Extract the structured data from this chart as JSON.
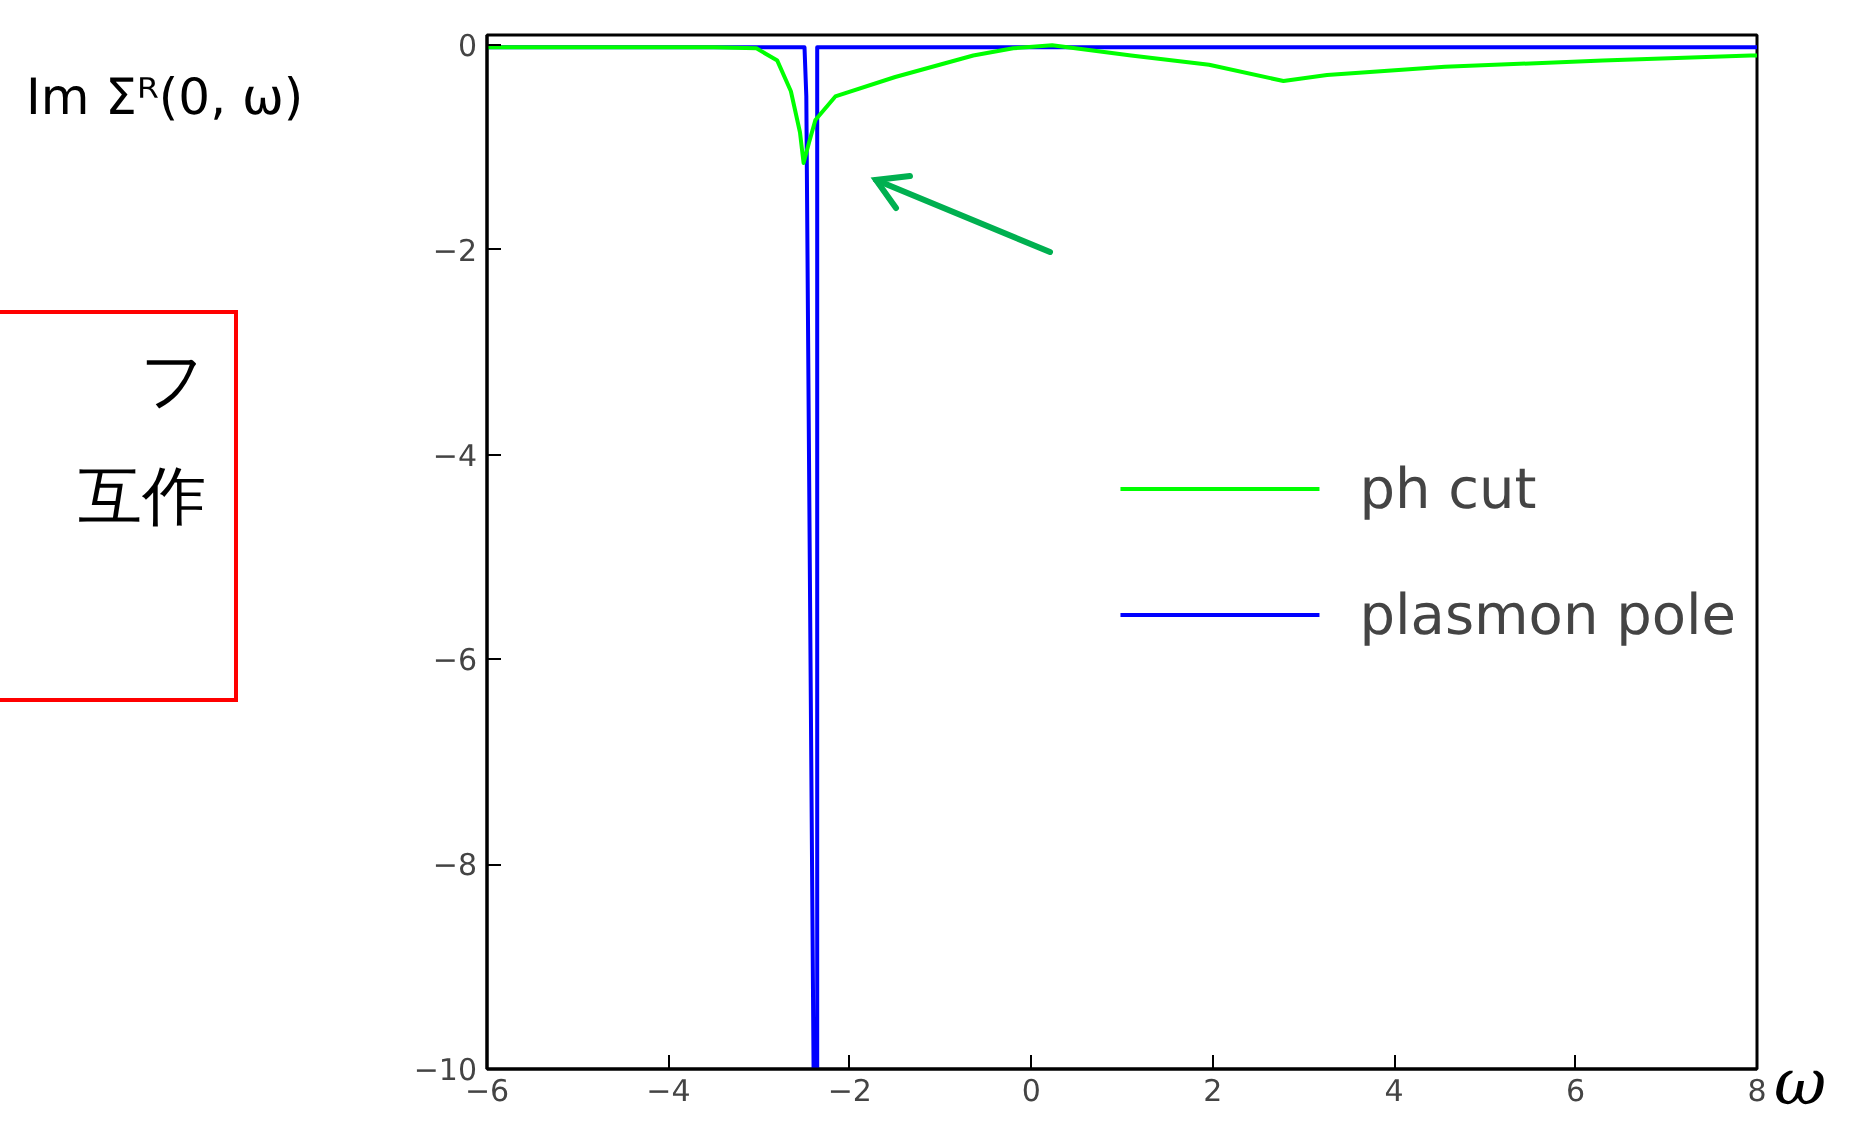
{
  "chart_data": {
    "type": "line",
    "xlabel": "ω",
    "ylabel": "Im Σᴿ(0, ω)",
    "xlim": [
      -6,
      8
    ],
    "ylim": [
      -10,
      0.1
    ],
    "xticks": [
      -6,
      -4,
      -2,
      0,
      2,
      4,
      6,
      8
    ],
    "yticks": [
      -10,
      -8,
      -6,
      -4,
      -2,
      0
    ],
    "grid": false,
    "legend": "right",
    "line_style": "solid",
    "marker": "none",
    "annotations": [
      "フ",
      "互作"
    ],
    "series": [
      {
        "name": "ph cut",
        "color": "#00ff00",
        "x": [
          -6,
          -3.5,
          -3.03,
          -2.8,
          -2.65,
          -2.55,
          -2.51,
          -2.45,
          -2.38,
          -2.16,
          -1.5,
          -0.64,
          -0.2,
          0.23,
          1.1,
          1.96,
          2.78,
          3.26,
          4.56,
          6.3,
          7.93,
          8
        ],
        "values": [
          -0.02,
          -0.02,
          -0.03,
          -0.15,
          -0.45,
          -0.85,
          -1.15,
          -0.95,
          -0.73,
          -0.5,
          -0.31,
          -0.1,
          -0.03,
          0,
          -0.1,
          -0.19,
          -0.35,
          -0.29,
          -0.21,
          -0.15,
          -0.1,
          -0.1
        ]
      },
      {
        "name": "plasmon pole",
        "color": "#0000ff",
        "x": [
          -6,
          -2.5,
          -2.48,
          -2.4,
          -2.36,
          -2.36,
          8
        ],
        "values": [
          -0.02,
          -0.02,
          -0.5,
          -10,
          -10,
          -0.02,
          -0.02
        ]
      }
    ]
  }
}
